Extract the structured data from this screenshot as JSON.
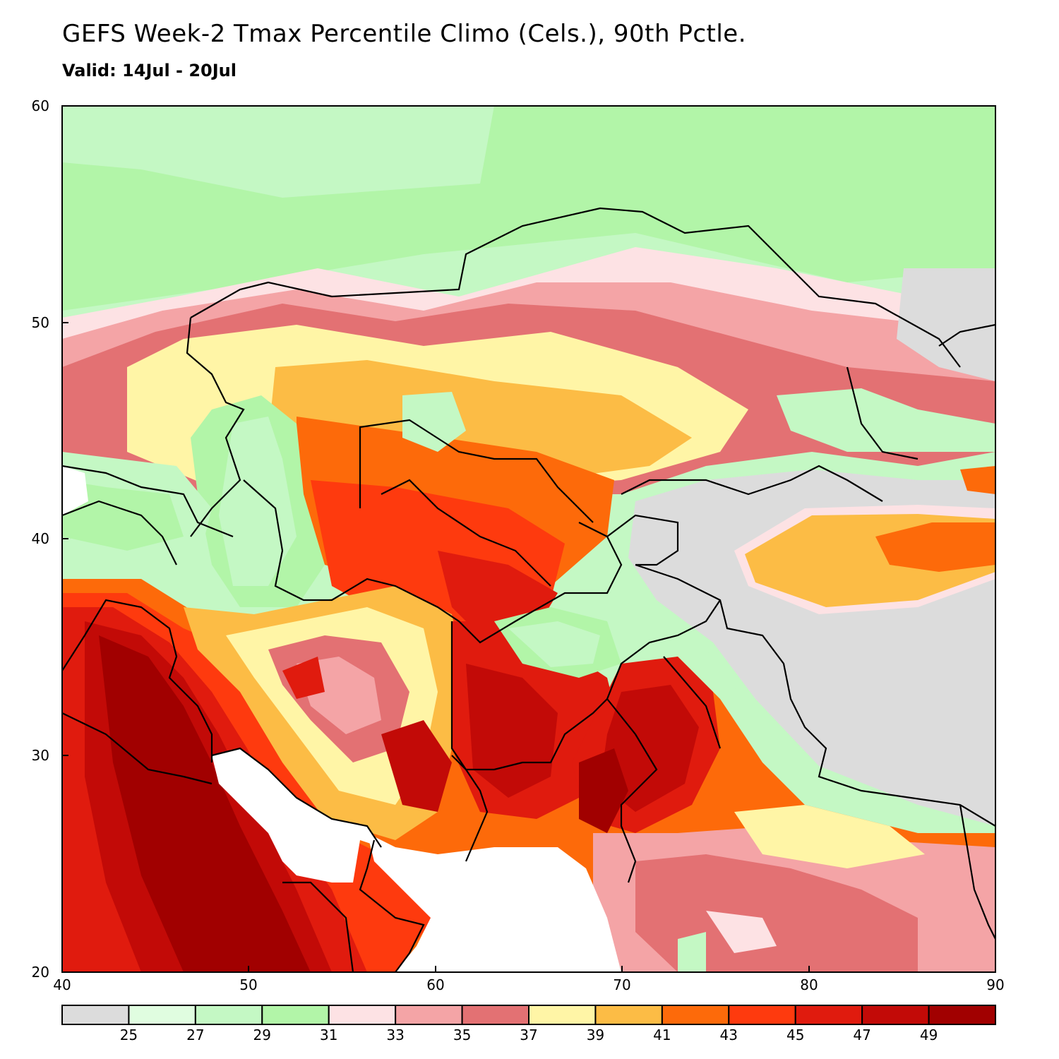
{
  "header": {
    "title": "GEFS Week-2 Tmax Percentile Climo (Cels.), 90th Pctle.",
    "subtitle": "Valid: 14Jul - 20Jul"
  },
  "map": {
    "x_ticks": [
      "40",
      "50",
      "60",
      "70",
      "80",
      "90"
    ],
    "y_ticks": [
      "60",
      "50",
      "40",
      "30",
      "20"
    ]
  },
  "colorbar": {
    "colors": [
      "#dcdcdc",
      "#e0fde0",
      "#c4f8c4",
      "#b2f5a8",
      "#fde2e4",
      "#f4a4a6",
      "#e37173",
      "#fff5a6",
      "#fcbc45",
      "#fd6a0a",
      "#fe3a0e",
      "#e01b0e",
      "#c20a07",
      "#a10000"
    ],
    "labels": [
      "25",
      "27",
      "29",
      "31",
      "33",
      "35",
      "37",
      "39",
      "41",
      "43",
      "45",
      "47",
      "49"
    ]
  }
}
